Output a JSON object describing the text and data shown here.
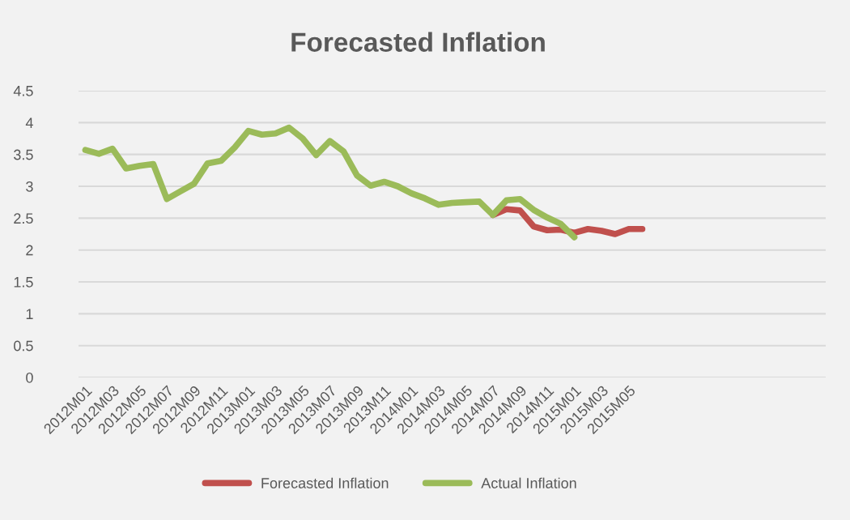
{
  "chart_data": {
    "type": "line",
    "title": "Forecasted Inflation",
    "categories": [
      "2012M01",
      null,
      "2012M03",
      null,
      "2012M05",
      null,
      "2012M07",
      null,
      "2012M09",
      null,
      "2012M11",
      null,
      "2013M01",
      null,
      "2013M03",
      null,
      "2013M05",
      null,
      "2013M07",
      null,
      "2013M09",
      null,
      "2013M11",
      null,
      "2014M01",
      null,
      "2014M03",
      null,
      "2014M05",
      null,
      "2014M07",
      null,
      "2014M09",
      null,
      "2014M11",
      null,
      "2015M01",
      null,
      "2015M03",
      null,
      "2015M05",
      null,
      null,
      null,
      null,
      null,
      null,
      null,
      null,
      null,
      null,
      null,
      null,
      null,
      null
    ],
    "series": [
      {
        "name": "Forecasted Inflation",
        "color": "#c0504d",
        "values": [
          null,
          null,
          null,
          null,
          null,
          null,
          null,
          null,
          null,
          null,
          null,
          null,
          null,
          null,
          null,
          null,
          null,
          null,
          null,
          null,
          null,
          null,
          null,
          null,
          null,
          null,
          null,
          null,
          null,
          null,
          2.55,
          2.64,
          2.62,
          2.37,
          2.31,
          2.32,
          2.27,
          2.33,
          2.3,
          2.25,
          2.33,
          2.33,
          null,
          null,
          null,
          null,
          null,
          null,
          null,
          null,
          null,
          null,
          null,
          null,
          null
        ]
      },
      {
        "name": "Actual Inflation",
        "color": "#9bbb59",
        "values": [
          3.57,
          3.51,
          3.59,
          3.28,
          3.32,
          3.35,
          2.8,
          2.92,
          3.04,
          3.36,
          3.4,
          3.61,
          3.87,
          3.81,
          3.83,
          3.92,
          3.75,
          3.49,
          3.71,
          3.55,
          3.17,
          3.01,
          3.07,
          3.0,
          2.89,
          2.81,
          2.71,
          2.74,
          2.75,
          2.76,
          2.55,
          2.78,
          2.8,
          2.63,
          2.51,
          2.41,
          2.2,
          null,
          null,
          null,
          null,
          null,
          null,
          null,
          null,
          null,
          null,
          null,
          null,
          null,
          null,
          null,
          null,
          null,
          null
        ]
      }
    ],
    "ylim": [
      0,
      4.5
    ],
    "yticks": [
      0,
      0.5,
      1,
      1.5,
      2,
      2.5,
      3,
      3.5,
      4,
      4.5
    ],
    "grid": "y",
    "legend": "bottom",
    "marker": "none",
    "line_style": "solid"
  }
}
